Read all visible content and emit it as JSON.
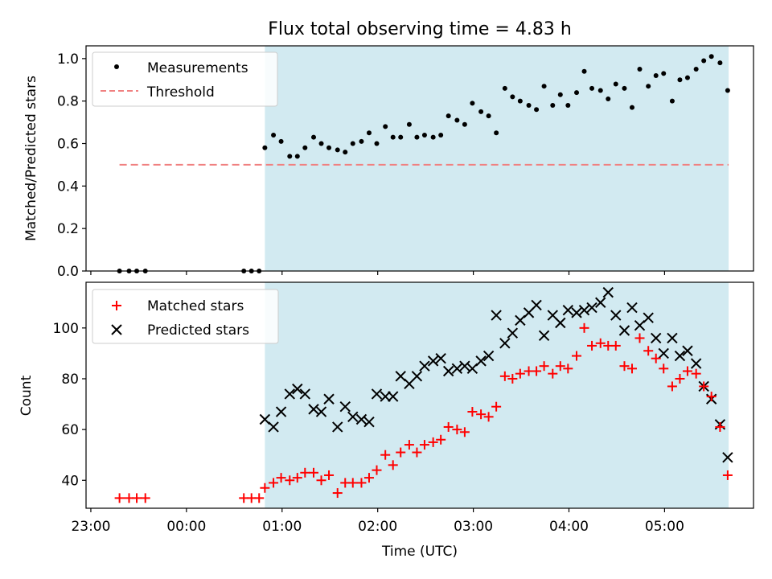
{
  "chart_data": [
    {
      "type": "scatter",
      "title": "Flux total observing time = 4.83 h",
      "ylabel": "Matched/Predicted stars",
      "xlabel": "",
      "x_unit": "hours since 23:00 UTC",
      "xlim": [
        -0.05,
        6.93
      ],
      "ylim": [
        0.0,
        1.06
      ],
      "yticks": [
        "0.0",
        "0.2",
        "0.4",
        "0.6",
        "0.8",
        "1.0"
      ],
      "shaded_region": {
        "x0": 1.82,
        "x1": 6.67,
        "color": "#add8e6"
      },
      "threshold": {
        "name": "Threshold",
        "y": 0.5,
        "x0": 0.3,
        "x1": 6.67,
        "color": "#f08080"
      },
      "legend": {
        "position": "top-left",
        "entries": [
          "Measurements",
          "Threshold"
        ]
      },
      "series": [
        {
          "name": "Measurements",
          "color": "#000000",
          "x": [
            0.3,
            0.4,
            0.48,
            0.57,
            1.6,
            1.68,
            1.76,
            1.82,
            1.91,
            1.99,
            2.08,
            2.16,
            2.24,
            2.33,
            2.41,
            2.49,
            2.58,
            2.66,
            2.74,
            2.83,
            2.91,
            2.99,
            3.08,
            3.16,
            3.24,
            3.33,
            3.41,
            3.49,
            3.58,
            3.66,
            3.74,
            3.83,
            3.91,
            3.99,
            4.08,
            4.16,
            4.24,
            4.33,
            4.41,
            4.49,
            4.58,
            4.66,
            4.74,
            4.83,
            4.91,
            4.99,
            5.08,
            5.16,
            5.24,
            5.33,
            5.41,
            5.49,
            5.58,
            5.66,
            5.74,
            5.83,
            5.91,
            5.99,
            6.08,
            6.16,
            6.24,
            6.33,
            6.41,
            6.49,
            6.58,
            6.66
          ],
          "y": [
            0.0,
            0.0,
            0.0,
            0.0,
            0.0,
            0.0,
            0.0,
            0.58,
            0.64,
            0.61,
            0.54,
            0.54,
            0.58,
            0.63,
            0.6,
            0.58,
            0.57,
            0.56,
            0.6,
            0.61,
            0.65,
            0.6,
            0.68,
            0.63,
            0.63,
            0.69,
            0.63,
            0.64,
            0.63,
            0.64,
            0.73,
            0.71,
            0.69,
            0.79,
            0.75,
            0.73,
            0.65,
            0.86,
            0.82,
            0.8,
            0.78,
            0.76,
            0.87,
            0.78,
            0.83,
            0.78,
            0.84,
            0.94,
            0.86,
            0.85,
            0.81,
            0.88,
            0.86,
            0.77,
            0.95,
            0.87,
            0.92,
            0.93,
            0.8,
            0.9,
            0.91,
            0.95,
            0.99,
            1.01,
            0.98,
            0.85
          ]
        }
      ]
    },
    {
      "type": "scatter",
      "title": "",
      "ylabel": "Count",
      "xlabel": "Time (UTC)",
      "x_unit": "hours since 23:00 UTC",
      "xlim": [
        -0.05,
        6.93
      ],
      "ylim": [
        29,
        118
      ],
      "yticks": [
        "40",
        "60",
        "80",
        "100"
      ],
      "xticks": [
        "23:00",
        "00:00",
        "01:00",
        "02:00",
        "03:00",
        "04:00",
        "05:00"
      ],
      "shaded_region": {
        "x0": 1.82,
        "x1": 6.67,
        "color": "#add8e6"
      },
      "legend": {
        "position": "top-left",
        "entries": [
          "Matched stars",
          "Predicted stars"
        ]
      },
      "series": [
        {
          "name": "Matched stars",
          "marker": "plus",
          "color": "#ff0000",
          "x": [
            0.3,
            0.4,
            0.48,
            0.57,
            1.6,
            1.68,
            1.76,
            1.82,
            1.91,
            1.99,
            2.08,
            2.16,
            2.24,
            2.33,
            2.41,
            2.49,
            2.58,
            2.66,
            2.74,
            2.83,
            2.91,
            2.99,
            3.08,
            3.16,
            3.24,
            3.33,
            3.41,
            3.49,
            3.58,
            3.66,
            3.74,
            3.83,
            3.91,
            3.99,
            4.08,
            4.16,
            4.24,
            4.33,
            4.41,
            4.49,
            4.58,
            4.66,
            4.74,
            4.83,
            4.91,
            4.99,
            5.08,
            5.16,
            5.24,
            5.33,
            5.41,
            5.49,
            5.58,
            5.66,
            5.74,
            5.83,
            5.91,
            5.99,
            6.08,
            6.16,
            6.24,
            6.33,
            6.41,
            6.49,
            6.58,
            6.66
          ],
          "y": [
            33,
            33,
            33,
            33,
            33,
            33,
            33,
            37,
            39,
            41,
            40,
            41,
            43,
            43,
            40,
            42,
            35,
            39,
            39,
            39,
            41,
            44,
            50,
            46,
            51,
            54,
            51,
            54,
            55,
            56,
            61,
            60,
            59,
            67,
            66,
            65,
            69,
            81,
            80,
            82,
            83,
            83,
            85,
            82,
            85,
            84,
            89,
            100,
            93,
            94,
            93,
            93,
            85,
            84,
            96,
            91,
            88,
            84,
            77,
            80,
            83,
            82,
            77,
            73,
            61,
            42
          ]
        },
        {
          "name": "Predicted stars",
          "marker": "x",
          "color": "#000000",
          "x": [
            1.82,
            1.91,
            1.99,
            2.08,
            2.16,
            2.24,
            2.33,
            2.41,
            2.49,
            2.58,
            2.66,
            2.74,
            2.83,
            2.91,
            2.99,
            3.08,
            3.16,
            3.24,
            3.33,
            3.41,
            3.49,
            3.58,
            3.66,
            3.74,
            3.83,
            3.91,
            3.99,
            4.08,
            4.16,
            4.24,
            4.33,
            4.41,
            4.49,
            4.58,
            4.66,
            4.74,
            4.83,
            4.91,
            4.99,
            5.08,
            5.16,
            5.24,
            5.33,
            5.41,
            5.49,
            5.58,
            5.66,
            5.74,
            5.83,
            5.91,
            5.99,
            6.08,
            6.16,
            6.24,
            6.33,
            6.41,
            6.49,
            6.58,
            6.66
          ],
          "y": [
            64,
            61,
            67,
            74,
            76,
            74,
            68,
            67,
            72,
            61,
            69,
            65,
            64,
            63,
            74,
            73,
            73,
            81,
            78,
            81,
            85,
            87,
            88,
            83,
            84,
            85,
            84,
            87,
            89,
            105,
            94,
            98,
            103,
            106,
            109,
            97,
            105,
            102,
            107,
            106,
            107,
            108,
            110,
            114,
            105,
            99,
            108,
            101,
            104,
            96,
            90,
            96,
            89,
            91,
            86,
            77,
            72,
            62,
            49
          ]
        }
      ]
    }
  ]
}
